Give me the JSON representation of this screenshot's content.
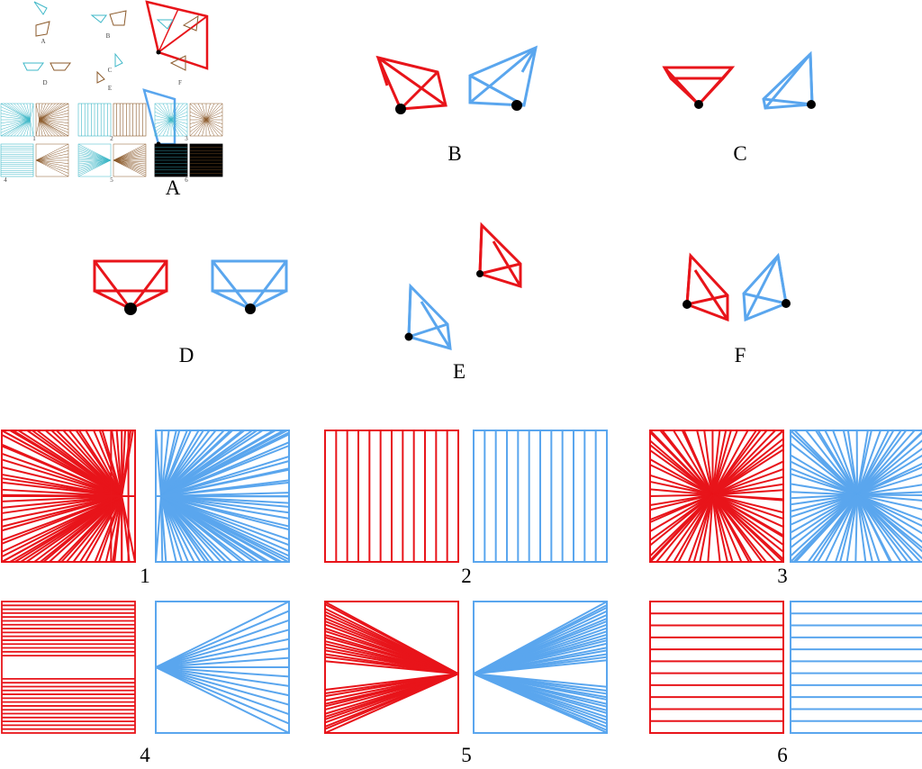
{
  "colors": {
    "red": "#e8141a",
    "blue": "#5aa6ee",
    "cyan": "#3fb8c8",
    "brown": "#8b5a2b",
    "camera_center": "#000000"
  },
  "panels": {
    "letters": [
      "A",
      "B",
      "C",
      "D",
      "E",
      "F"
    ],
    "numbers": [
      "1",
      "2",
      "3",
      "4",
      "5",
      "6"
    ]
  },
  "thumbnail": {
    "letters": [
      "A",
      "B",
      "C",
      "D",
      "E",
      "F"
    ],
    "numbers": [
      "1",
      "2",
      "3",
      "4",
      "5",
      "6"
    ]
  }
}
